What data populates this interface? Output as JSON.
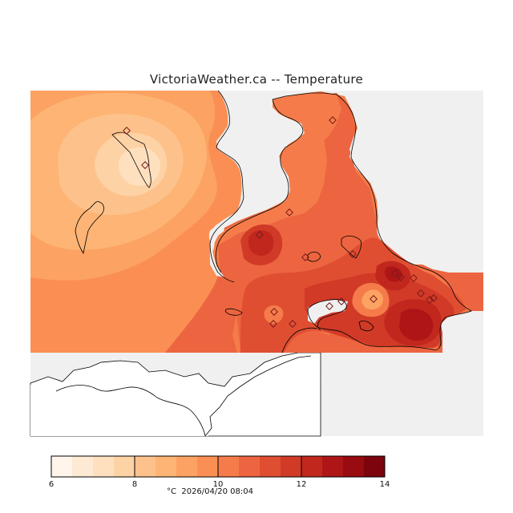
{
  "title": "VictoriaWeather.ca -- Temperature",
  "colorbar": {
    "min": 6,
    "max": 14,
    "step": 0.5,
    "tick_labels": [
      "6",
      "8",
      "10",
      "12",
      "14"
    ],
    "unit": "°C",
    "timestamp": "2026/04/20 08:04",
    "colors": [
      "#fff5eb",
      "#feead4",
      "#fee0bf",
      "#fdd2a5",
      "#fdc28b",
      "#fdb474",
      "#fca262",
      "#fb8f53",
      "#f57c4a",
      "#ec6540",
      "#e04e32",
      "#d13a27",
      "#c1271d",
      "#ae1517",
      "#970b11",
      "#7d040c"
    ]
  },
  "colors": {
    "water": "#f0f0f0",
    "land_outside_domain": "#ffffff",
    "coast": "#000000",
    "station_marker": "#7a1a1a"
  },
  "stations_count": 19
}
